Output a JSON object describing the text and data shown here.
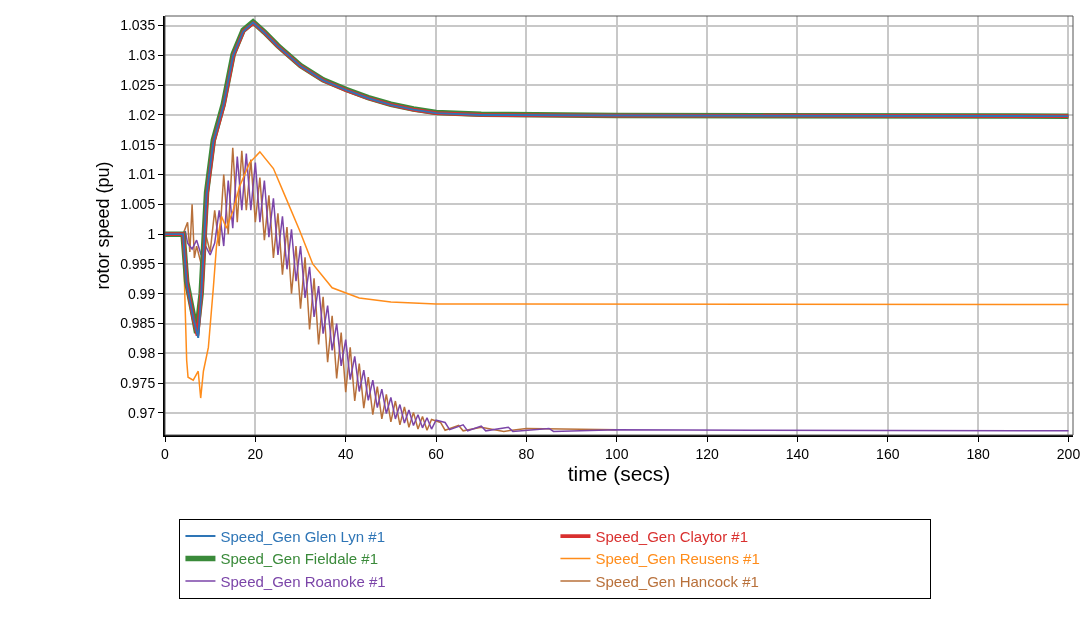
{
  "chart_data": {
    "type": "line",
    "xlabel": "time (secs)",
    "ylabel": "rotor speed (pu)",
    "xlim": [
      0,
      201
    ],
    "xticks": [
      0,
      20,
      40,
      60,
      80,
      100,
      120,
      140,
      160,
      180,
      200
    ],
    "ylim": [
      0.9663,
      1.0366
    ],
    "yticks": [
      0.97,
      0.975,
      0.98,
      0.985,
      0.99,
      0.995,
      1,
      1.005,
      1.01,
      1.015,
      1.02,
      1.025,
      1.03,
      1.035
    ],
    "grid": true,
    "legend": "bottom",
    "marker": "none",
    "line_style": "solid",
    "series": [
      {
        "name": "Speed_Gen Glen Lyn #1",
        "color": "#2e75b6",
        "x": [
          0,
          4,
          4.8,
          6.25,
          7.35,
          8.1,
          9.2,
          10.7,
          12.9,
          15.1,
          17.3,
          19.5,
          22,
          25,
          30,
          35,
          40,
          45,
          50,
          55,
          60,
          70,
          100,
          200
        ],
        "values": [
          1,
          1,
          0.9917,
          0.986,
          0.9826,
          0.991,
          1.0066,
          1.0155,
          1.0215,
          1.03,
          1.034,
          1.0355,
          1.0338,
          1.0315,
          1.0282,
          1.0258,
          1.0242,
          1.0228,
          1.0217,
          1.0209,
          1.0203,
          1.02,
          1.0199,
          1.0198
        ]
      },
      {
        "name": "Speed_Gen Claytor #1",
        "color": "#d9302f",
        "x": [
          0,
          4,
          4.9,
          6.3,
          7.2,
          8.2,
          9.3,
          10.8,
          13,
          15.2,
          17.4,
          19.6,
          22,
          25,
          30,
          35,
          40,
          45,
          50,
          55,
          60,
          70,
          100,
          200
        ],
        "values": [
          1,
          1,
          0.9915,
          0.9858,
          0.983,
          0.9915,
          1.0068,
          1.0156,
          1.0216,
          1.0301,
          1.0341,
          1.0354,
          1.0338,
          1.0315,
          1.0282,
          1.0258,
          1.0242,
          1.0228,
          1.0217,
          1.0209,
          1.0203,
          1.02,
          1.0199,
          1.0198
        ]
      },
      {
        "name": "Speed_Gen Fieldale #1",
        "color": "#3a8a3a",
        "x": [
          0,
          4,
          4.8,
          6.25,
          7,
          8,
          9.2,
          10.7,
          12.9,
          15.1,
          17.3,
          19.5,
          22,
          25,
          30,
          35,
          40,
          45,
          50,
          55,
          60,
          70,
          100,
          200
        ],
        "values": [
          1,
          1,
          0.992,
          0.9865,
          0.9834,
          0.99,
          1.007,
          1.0158,
          1.0218,
          1.0302,
          1.0342,
          1.0356,
          1.0339,
          1.0316,
          1.0283,
          1.0259,
          1.0243,
          1.0229,
          1.0218,
          1.021,
          1.0204,
          1.0201,
          1.0199,
          1.0198
        ]
      },
      {
        "name": "Speed_Gen Reusens #1",
        "color": "#ff8c1a",
        "x": [
          4,
          4.8,
          5.1,
          6.25,
          7.35,
          7.9,
          8.5,
          9.6,
          10.7,
          11.4,
          12.5,
          13.6,
          15.1,
          16.5,
          18.75,
          21,
          24,
          26.8,
          29.8,
          32.7,
          37,
          43,
          50,
          60,
          200
        ],
        "values": [
          1,
          0.9788,
          0.976,
          0.9755,
          0.977,
          0.9725,
          0.977,
          0.981,
          0.991,
          0.998,
          1.003,
          1.001,
          1.004,
          1.008,
          1.012,
          1.0138,
          1.011,
          1.006,
          1.0006,
          0.995,
          0.991,
          0.9893,
          0.9886,
          0.9883,
          0.9882
        ]
      },
      {
        "name": "Speed_Gen Roanoke #1",
        "color": "#7b45a8",
        "x": [
          4,
          4.5,
          5,
          6,
          7,
          8,
          9,
          10,
          11,
          12,
          13,
          14,
          15,
          16,
          17,
          18,
          19,
          20,
          21,
          22,
          23,
          24,
          25,
          26,
          27,
          28,
          29,
          30,
          31,
          32,
          33,
          34,
          35,
          36,
          37,
          38,
          39,
          40,
          41,
          42,
          43,
          44,
          45,
          46,
          47,
          48,
          49,
          50,
          51,
          52,
          53,
          54,
          55,
          56,
          57,
          58,
          59,
          60,
          62,
          63,
          66,
          67,
          70,
          71,
          76,
          77,
          85,
          86,
          100,
          130,
          200
        ],
        "values": [
          1,
          1.0005,
          0.9985,
          0.9975,
          0.999,
          0.9965,
          0.998,
          0.9965,
          0.9985,
          1.004,
          0.998,
          1.009,
          1.001,
          1.013,
          1.004,
          1.0135,
          1.004,
          1.012,
          1.002,
          1.009,
          0.9995,
          1.006,
          0.9965,
          1.003,
          0.9941,
          1.0008,
          0.9921,
          0.998,
          0.9893,
          0.9945,
          0.9861,
          0.9913,
          0.9833,
          0.988,
          0.9805,
          0.985,
          0.9779,
          0.9823,
          0.9756,
          0.9795,
          0.9736,
          0.9772,
          0.9721,
          0.9755,
          0.9709,
          0.974,
          0.9699,
          0.9726,
          0.969,
          0.9714,
          0.9683,
          0.9705,
          0.9679,
          0.9697,
          0.9675,
          0.9692,
          0.9673,
          0.9688,
          0.9684,
          0.9672,
          0.968,
          0.967,
          0.9678,
          0.967,
          0.9676,
          0.9669,
          0.9674,
          0.9669,
          0.9672,
          0.9671,
          0.967
        ]
      },
      {
        "name": "Speed_Gen Hancock #1",
        "color": "#b8703a",
        "x": [
          4,
          5,
          5.5,
          6,
          6.5,
          7,
          8,
          9,
          10,
          11,
          12,
          13,
          14,
          15,
          16,
          17,
          18,
          19,
          20,
          21,
          22,
          23,
          24,
          25,
          26,
          27,
          28,
          29,
          30,
          31,
          32,
          33,
          34,
          35,
          36,
          37,
          38,
          39,
          40,
          41,
          42,
          43,
          44,
          45,
          46,
          47,
          48,
          49,
          50,
          51,
          52,
          53,
          54,
          55,
          56,
          57,
          58,
          59,
          61,
          62,
          65,
          66,
          70,
          75,
          80,
          100
        ],
        "values": [
          1,
          1.002,
          0.997,
          1.005,
          0.996,
          0.998,
          0.995,
          1.0,
          0.997,
          1.004,
          0.998,
          1.01,
          1.0,
          1.0145,
          1.002,
          1.014,
          1.004,
          1.0125,
          1.002,
          1.0095,
          0.999,
          1.0065,
          0.996,
          1.0035,
          0.9932,
          1.0012,
          0.99,
          0.998,
          0.9875,
          0.9961,
          0.984,
          0.9926,
          0.9815,
          0.9895,
          0.9785,
          0.9863,
          0.9758,
          0.9835,
          0.9735,
          0.981,
          0.972,
          0.9783,
          0.9708,
          0.976,
          0.9697,
          0.9744,
          0.969,
          0.9731,
          0.9685,
          0.972,
          0.968,
          0.971,
          0.9676,
          0.9701,
          0.9673,
          0.9694,
          0.9671,
          0.9689,
          0.9684,
          0.9671,
          0.9679,
          0.967,
          0.9676,
          0.9669,
          0.9674,
          0.9672
        ]
      }
    ]
  }
}
